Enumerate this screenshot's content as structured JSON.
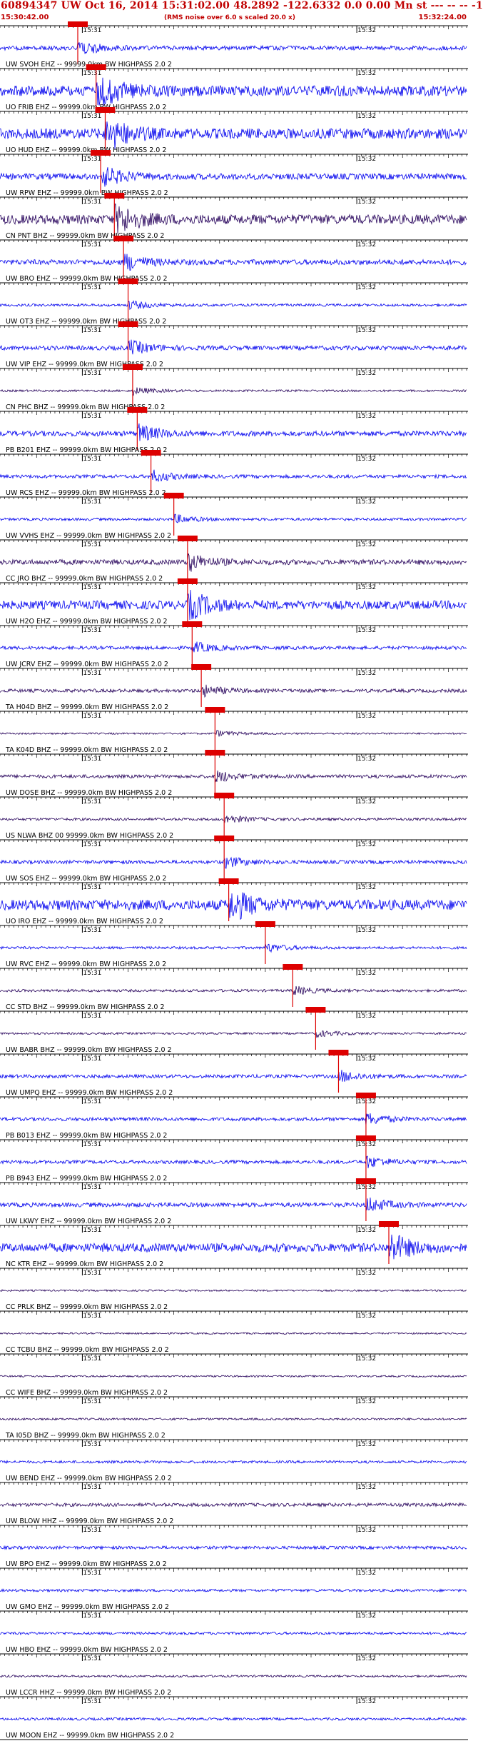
{
  "header": {
    "title": "60894347 UW Oct 16, 2014 15:31:02.00   48.2892 -122.6332  0.0 0.00 Mn st --- -- -- -1",
    "start_time": "15:30:42.00",
    "noise_note": "(RMS noise over 6.0 s scaled 20.0 x)",
    "end_time": "15:32:24.00"
  },
  "colors": {
    "trace_primary": "#0000ee",
    "trace_dark": "#25005a",
    "pick": "#dd0000",
    "label_text": "#000000",
    "title_text": "#c00000"
  },
  "chart_data": {
    "type": "line",
    "x_axis": {
      "start": "15:30:42.00",
      "end": "15:32:24.00",
      "major_tick_labels": [
        "15:31",
        "15:32"
      ]
    },
    "channels": [
      {
        "label": "UW SVOH EHZ -- 99999.0km BW  HIGHPASS  2.0  2",
        "pick": "15:30:59",
        "color": "blue",
        "amp": 0.25
      },
      {
        "label": "UO FRIB EHZ -- 99999.0km BW  HIGHPASS  2.0  2",
        "pick": "15:31:03",
        "color": "blue",
        "amp": 0.6
      },
      {
        "label": "UO HUD EHZ -- 99999.0km BW  HIGHPASS  2.0  2",
        "pick": "15:31:05",
        "color": "blue",
        "amp": 0.6
      },
      {
        "label": "UW RPW EHZ -- 99999.0km BW  HIGHPASS  2.0  2",
        "pick": "15:31:04",
        "color": "blue",
        "amp": 0.35
      },
      {
        "label": "CN PNT BHZ -- 99999.0km BW  HIGHPASS  2.0  2",
        "pick": "15:31:07",
        "color": "dark",
        "amp": 0.55
      },
      {
        "label": "UW BRO EHZ -- 99999.0km BW  HIGHPASS  2.0  2",
        "pick": "15:31:09",
        "color": "blue",
        "amp": 0.3
      },
      {
        "label": "UW OT3 EHZ -- 99999.0km BW  HIGHPASS  2.0  2",
        "pick": "15:31:10",
        "color": "blue",
        "amp": 0.15
      },
      {
        "label": "UW VIP EHZ -- 99999.0km BW  HIGHPASS  2.0  2",
        "pick": "15:31:10",
        "color": "blue",
        "amp": 0.25
      },
      {
        "label": "CN PHC BHZ -- 99999.0km BW  HIGHPASS  2.0  2",
        "pick": "15:31:11",
        "color": "dark",
        "amp": 0.12
      },
      {
        "label": "PB B201 EHZ -- 99999.0km BW  HIGHPASS  2.0  2",
        "pick": "15:31:12",
        "color": "blue",
        "amp": 0.3
      },
      {
        "label": "UW RCS EHZ -- 99999.0km BW  HIGHPASS  2.0  2",
        "pick": "15:31:15",
        "color": "blue",
        "amp": 0.2
      },
      {
        "label": "UW VVHS EHZ -- 99999.0km BW  HIGHPASS  2.0  2",
        "pick": "15:31:20",
        "color": "blue",
        "amp": 0.15
      },
      {
        "label": "CC JRO BHZ -- 99999.0km BW  HIGHPASS  2.0  2",
        "pick": "15:31:23",
        "color": "dark",
        "amp": 0.3
      },
      {
        "label": "UW H2O EHZ -- 99999.0km BW  HIGHPASS  2.0  2",
        "pick": "15:31:23",
        "color": "blue",
        "amp": 0.5
      },
      {
        "label": "UW JCRV EHZ -- 99999.0km BW  HIGHPASS  2.0  2",
        "pick": "15:31:24",
        "color": "blue",
        "amp": 0.2
      },
      {
        "label": "TA H04D BHZ -- 99999.0km BW  HIGHPASS  2.0  2",
        "pick": "15:31:26",
        "color": "dark",
        "amp": 0.2
      },
      {
        "label": "TA K04D BHZ -- 99999.0km BW  HIGHPASS  2.0  2",
        "pick": "15:31:29",
        "color": "dark",
        "amp": 0.1
      },
      {
        "label": "UW DOSE BHZ -- 99999.0km BW  HIGHPASS  2.0  2",
        "pick": "15:31:29",
        "color": "dark",
        "amp": 0.2
      },
      {
        "label": "US NLWA BHZ 00 99999.0km BW  HIGHPASS  2.0  2",
        "pick": "15:31:31",
        "color": "dark",
        "amp": 0.15
      },
      {
        "label": "UW SOS EHZ -- 99999.0km BW  HIGHPASS  2.0  2",
        "pick": "15:31:31",
        "color": "blue",
        "amp": 0.2
      },
      {
        "label": "UO IRO EHZ -- 99999.0km BW  HIGHPASS  2.0  2",
        "pick": "15:31:32",
        "color": "blue",
        "amp": 0.6
      },
      {
        "label": "UW RVC EHZ -- 99999.0km BW  HIGHPASS  2.0  2",
        "pick": "15:31:40",
        "color": "blue",
        "amp": 0.15
      },
      {
        "label": "CC STD BHZ -- 99999.0km BW  HIGHPASS  2.0  2",
        "pick": "15:31:46",
        "color": "dark",
        "amp": 0.15
      },
      {
        "label": "UW BABR BHZ -- 99999.0km BW  HIGHPASS  2.0  2",
        "pick": "15:31:51",
        "color": "dark",
        "amp": 0.12
      },
      {
        "label": "UW UMPQ EHZ -- 99999.0km BW  HIGHPASS  2.0  2",
        "pick": "15:31:56",
        "color": "blue",
        "amp": 0.2
      },
      {
        "label": "PB B013 EHZ -- 99999.0km BW  HIGHPASS  2.0  2",
        "pick": "15:32:02",
        "color": "blue",
        "amp": 0.2
      },
      {
        "label": "PB B943 EHZ -- 99999.0km BW  HIGHPASS  2.0  2",
        "pick": "15:32:02",
        "color": "blue",
        "amp": 0.2
      },
      {
        "label": "UW LKWY EHZ -- 99999.0km BW  HIGHPASS  2.0  2",
        "pick": "15:32:02",
        "color": "blue",
        "amp": 0.25
      },
      {
        "label": "NC KTR EHZ -- 99999.0km BW  HIGHPASS  2.0  2",
        "pick": "15:32:07",
        "color": "blue",
        "amp": 0.5
      },
      {
        "label": "CC PRLK BHZ -- 99999.0km BW  HIGHPASS  2.0  2",
        "pick": "",
        "color": "dark",
        "amp": 0.1
      },
      {
        "label": "CC TCBU BHZ -- 99999.0km BW  HIGHPASS  2.0  2",
        "pick": "",
        "color": "dark",
        "amp": 0.1
      },
      {
        "label": "CC WIFE BHZ -- 99999.0km BW  HIGHPASS  2.0  2",
        "pick": "",
        "color": "dark",
        "amp": 0.1
      },
      {
        "label": "TA I05D BHZ -- 99999.0km BW  HIGHPASS  2.0  2",
        "pick": "",
        "color": "dark",
        "amp": 0.12
      },
      {
        "label": "UW BEND EHZ -- 99999.0km BW  HIGHPASS  2.0  2",
        "pick": "",
        "color": "blue",
        "amp": 0.15
      },
      {
        "label": "UW BLOW HHZ -- 99999.0km BW  HIGHPASS  2.0  2",
        "pick": "",
        "color": "dark",
        "amp": 0.2
      },
      {
        "label": "UW BPO EHZ -- 99999.0km BW  HIGHPASS  2.0  2",
        "pick": "",
        "color": "blue",
        "amp": 0.18
      },
      {
        "label": "UW GMO EHZ -- 99999.0km BW  HIGHPASS  2.0  2",
        "pick": "",
        "color": "blue",
        "amp": 0.15
      },
      {
        "label": "UW HBO EHZ -- 99999.0km BW  HIGHPASS  2.0  2",
        "pick": "",
        "color": "blue",
        "amp": 0.15
      },
      {
        "label": "UW LCCR HHZ -- 99999.0km BW  HIGHPASS  2.0  2",
        "pick": "",
        "color": "dark",
        "amp": 0.12
      },
      {
        "label": "UW MOON EHZ -- 99999.0km BW  HIGHPASS  2.0  2",
        "pick": "",
        "color": "blue",
        "amp": 0.15
      }
    ]
  }
}
